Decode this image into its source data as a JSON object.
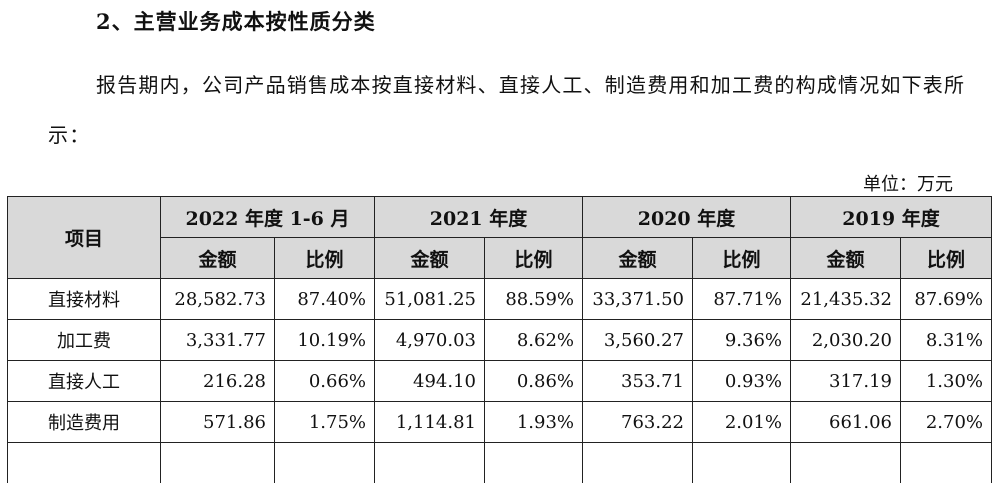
{
  "heading": "2、主营业务成本按性质分类",
  "paragraph": "报告期内，公司产品销售成本按直接材料、直接人工、制造费用和加工费的构成情况如下表所示：",
  "unit": "单位：万元",
  "table": {
    "item_header": "项目",
    "periods": [
      "2022 年度 1-6 月",
      "2021 年度",
      "2020 年度",
      "2019 年度"
    ],
    "sub_headers": [
      "金额",
      "比例",
      "金额",
      "比例",
      "金额",
      "比例",
      "金额",
      "比例"
    ],
    "rows": [
      {
        "item": "直接材料",
        "cells": [
          "28,582.73",
          "87.40%",
          "51,081.25",
          "88.59%",
          "33,371.50",
          "87.71%",
          "21,435.32",
          "87.69%"
        ]
      },
      {
        "item": "加工费",
        "cells": [
          "3,331.77",
          "10.19%",
          "4,970.03",
          "8.62%",
          "3,560.27",
          "9.36%",
          "2,030.20",
          "8.31%"
        ]
      },
      {
        "item": "直接人工",
        "cells": [
          "216.28",
          "0.66%",
          "494.10",
          "0.86%",
          "353.71",
          "0.93%",
          "317.19",
          "1.30%"
        ]
      },
      {
        "item": "制造费用",
        "cells": [
          "571.86",
          "1.75%",
          "1,114.81",
          "1.93%",
          "763.22",
          "2.01%",
          "661.06",
          "2.70%"
        ]
      }
    ]
  }
}
